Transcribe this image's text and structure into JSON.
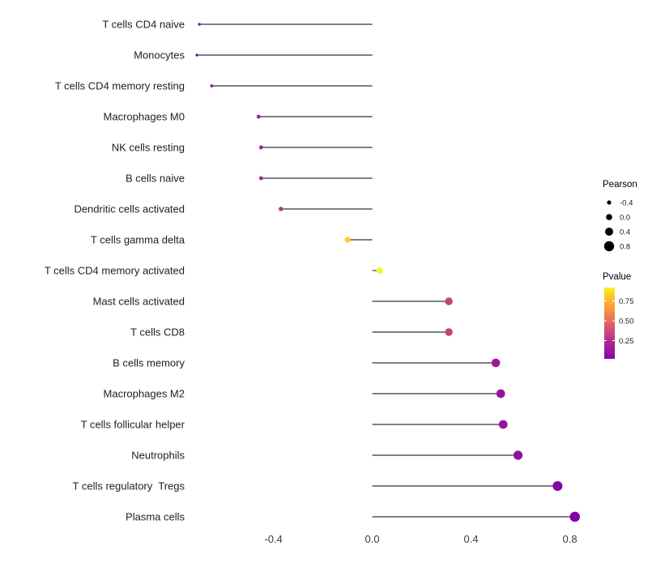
{
  "chart_data": {
    "type": "scatter",
    "subtype": "lollipop",
    "title": "",
    "xlabel": "",
    "ylabel": "",
    "grid": false,
    "xlim": [
      -0.72,
      0.88
    ],
    "x_ticks": [
      -0.4,
      0.0,
      0.4,
      0.8
    ],
    "x_tick_labels": [
      "-0.4",
      "0.0",
      "0.4",
      "0.8"
    ],
    "baseline_x": 0.0,
    "points": [
      {
        "label": "T cells CD4 naive",
        "pearson": -0.7,
        "pvalue": 0.12,
        "color": "#8B0AA5"
      },
      {
        "label": "Monocytes",
        "pearson": -0.71,
        "pvalue": 0.06,
        "color": "#7E03A8"
      },
      {
        "label": "T cells CD4 memory resting",
        "pearson": -0.65,
        "pvalue": 0.16,
        "color": "#9511A1"
      },
      {
        "label": "Macrophages M0",
        "pearson": -0.46,
        "pvalue": 0.22,
        "color": "#A62098"
      },
      {
        "label": "NK cells resting",
        "pearson": -0.45,
        "pvalue": 0.22,
        "color": "#A62098"
      },
      {
        "label": "B cells naive",
        "pearson": -0.45,
        "pvalue": 0.24,
        "color": "#AB2494"
      },
      {
        "label": "Dendritic cells activated",
        "pearson": -0.37,
        "pvalue": 0.33,
        "color": "#BB3488"
      },
      {
        "label": "T cells gamma delta",
        "pearson": -0.1,
        "pvalue": 0.8,
        "color": "#FCCE25"
      },
      {
        "label": "T cells CD4 memory activated",
        "pearson": 0.03,
        "pvalue": 0.92,
        "color": "#F0F921"
      },
      {
        "label": "Mast cells activated",
        "pearson": 0.31,
        "pvalue": 0.44,
        "color": "#C5417F"
      },
      {
        "label": "T cells CD8",
        "pearson": 0.31,
        "pvalue": 0.44,
        "color": "#C5417F"
      },
      {
        "label": "B cells memory",
        "pearson": 0.5,
        "pvalue": 0.18,
        "color": "#9C179E"
      },
      {
        "label": "Macrophages M2",
        "pearson": 0.52,
        "pvalue": 0.15,
        "color": "#9511A1"
      },
      {
        "label": "T cells follicular helper",
        "pearson": 0.53,
        "pvalue": 0.15,
        "color": "#9511A1"
      },
      {
        "label": "Neutrophils",
        "pearson": 0.59,
        "pvalue": 0.12,
        "color": "#8F0DA4"
      },
      {
        "label": "T cells regulatory  Tregs",
        "pearson": 0.75,
        "pvalue": 0.07,
        "color": "#8405A7"
      },
      {
        "label": "Plasma cells",
        "pearson": 0.82,
        "pvalue": 0.04,
        "color": "#8004A8"
      }
    ],
    "legend": {
      "position": "right",
      "size": {
        "title": "Pearson",
        "values": [
          -0.4,
          0.0,
          0.4,
          0.8
        ],
        "labels": [
          "-0.4",
          "0.0",
          "0.4",
          "0.8"
        ],
        "dot_color": "#000000"
      },
      "color": {
        "title": "Pvalue",
        "tick_values": [
          0.75,
          0.5,
          0.25
        ],
        "tick_labels": [
          "0.75",
          "0.50",
          "0.25"
        ],
        "range": [
          0.02,
          0.92
        ],
        "gradient_top_to_bottom": [
          "#F0F921",
          "#FDC527",
          "#FCA636",
          "#F2844B",
          "#E16462",
          "#CC4778",
          "#B12A90",
          "#9C179E",
          "#8305A7"
        ]
      }
    },
    "stem_color": "#000000"
  }
}
